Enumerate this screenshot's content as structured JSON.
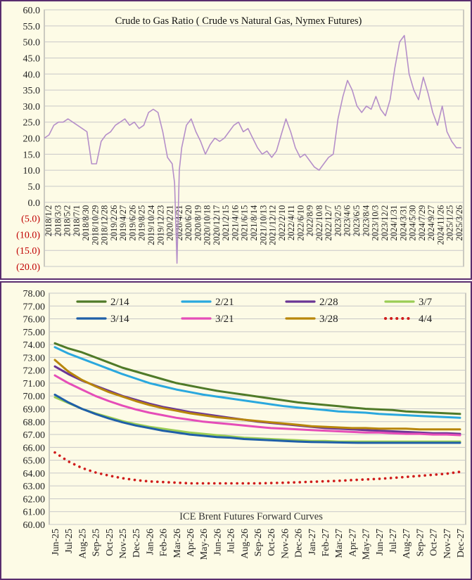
{
  "colors": {
    "frame": "#5a2d6e",
    "background": "#fdfbe6",
    "ratio_line": "#b58fc9",
    "negative_tick": "#c00000"
  },
  "chart_data": [
    {
      "type": "line",
      "title": "Crude to Gas Ratio ( Crude vs Natural Gas, Nymex Futures)",
      "xlabel": "",
      "ylabel": "",
      "ylim": [
        -20,
        60
      ],
      "y_ticks": [
        "60.0",
        "55.0",
        "50.0",
        "45.0",
        "40.0",
        "35.0",
        "30.0",
        "25.0",
        "20.0",
        "15.0",
        "10.0",
        "5.0",
        "0.0",
        "(5.0)",
        "(10.0)",
        "(15.0)",
        "(20.0)"
      ],
      "x_tick_labels": [
        "2018/1/2",
        "2018/3/3",
        "2018/5/2",
        "2018/7/1",
        "2018/8/30",
        "2018/10/29",
        "2018/12/28",
        "2019/2/26",
        "2019/4/27",
        "2019/6/26",
        "2019/8/25",
        "2019/10/24",
        "2019/12/23",
        "2020/2/21",
        "2020/4/21",
        "2020/6/20",
        "2020/8/19",
        "2020/10/18",
        "2020/12/17",
        "2021/2/15",
        "2021/4/16",
        "2021/6/15",
        "2021/8/14",
        "2021/10/13",
        "2021/12/12",
        "2022/2/10",
        "2022/4/11",
        "2022/6/10",
        "2022/8/9",
        "2022/10/8",
        "2022/12/7",
        "2023/2/5",
        "2023/4/6",
        "2023/6/5",
        "2023/8/4",
        "2023/10/3",
        "2023/12/2",
        "2024/1/31",
        "2024/3/31",
        "2024/5/30",
        "2024/7/29",
        "2024/9/27",
        "2024/11/26",
        "2025/1/25",
        "2025/3/26"
      ],
      "series": [
        {
          "color": "#b58fc9",
          "x": [
            "2018-01-02",
            "2018-02-01",
            "2018-03-03",
            "2018-04-02",
            "2018-05-02",
            "2018-06-01",
            "2018-07-01",
            "2018-07-31",
            "2018-08-30",
            "2018-09-29",
            "2018-10-29",
            "2018-11-28",
            "2018-12-28",
            "2019-01-27",
            "2019-02-26",
            "2019-03-28",
            "2019-04-27",
            "2019-05-27",
            "2019-06-26",
            "2019-07-26",
            "2019-08-25",
            "2019-09-24",
            "2019-10-24",
            "2019-11-23",
            "2019-12-23",
            "2020-01-22",
            "2020-02-21",
            "2020-03-22",
            "2020-04-06",
            "2020-04-21",
            "2020-05-06",
            "2020-05-21",
            "2020-06-20",
            "2020-07-20",
            "2020-08-19",
            "2020-09-18",
            "2020-10-18",
            "2020-11-17",
            "2020-12-17",
            "2021-01-16",
            "2021-02-15",
            "2021-03-17",
            "2021-04-16",
            "2021-05-16",
            "2021-06-15",
            "2021-07-15",
            "2021-08-14",
            "2021-09-13",
            "2021-10-13",
            "2021-11-12",
            "2021-12-12",
            "2022-01-11",
            "2022-02-10",
            "2022-03-12",
            "2022-04-11",
            "2022-05-11",
            "2022-06-10",
            "2022-07-10",
            "2022-08-09",
            "2022-09-08",
            "2022-10-08",
            "2022-11-07",
            "2022-12-07",
            "2023-01-06",
            "2023-02-05",
            "2023-03-08",
            "2023-04-06",
            "2023-05-06",
            "2023-06-05",
            "2023-07-05",
            "2023-08-04",
            "2023-09-03",
            "2023-10-03",
            "2023-11-02",
            "2023-12-02",
            "2024-01-01",
            "2024-01-31",
            "2024-03-01",
            "2024-03-31",
            "2024-04-30",
            "2024-05-30",
            "2024-06-29",
            "2024-07-29",
            "2024-08-28",
            "2024-09-27",
            "2024-10-27",
            "2024-11-26",
            "2024-12-26",
            "2025-01-25",
            "2025-02-24",
            "2025-03-26"
          ],
          "values": [
            20,
            21,
            24,
            25,
            25,
            26,
            25,
            24,
            23,
            22,
            12,
            12,
            19,
            21,
            22,
            24,
            25,
            26,
            24,
            25,
            23,
            24,
            28,
            29,
            28,
            22,
            14,
            12,
            6,
            -19,
            10,
            17,
            24,
            26,
            22,
            19,
            15,
            18,
            20,
            19,
            20,
            22,
            24,
            25,
            22,
            23,
            20,
            17,
            15,
            16,
            14,
            16,
            21,
            26,
            22,
            17,
            14,
            15,
            13,
            11,
            10,
            12,
            14,
            15,
            26,
            33,
            38,
            35,
            30,
            28,
            30,
            29,
            33,
            29,
            27,
            32,
            42,
            50,
            52,
            40,
            35,
            32,
            39,
            34,
            28,
            24,
            30,
            22,
            19,
            17,
            17
          ]
        }
      ]
    },
    {
      "type": "line",
      "title": "ICE Brent Futures Forward Curves",
      "xlabel": "",
      "ylabel": "",
      "ylim": [
        60,
        78
      ],
      "y_ticks": [
        "78.00",
        "77.00",
        "76.00",
        "75.00",
        "74.00",
        "73.00",
        "72.00",
        "71.00",
        "70.00",
        "69.00",
        "68.00",
        "67.00",
        "66.00",
        "65.00",
        "64.00",
        "63.00",
        "62.00",
        "61.00",
        "60.00"
      ],
      "legend_position": "top",
      "categories": [
        "Jun-25",
        "Jul-25",
        "Aug-25",
        "Sep-25",
        "Oct-25",
        "Nov-25",
        "Dec-25",
        "Jan-26",
        "Feb-26",
        "Mar-26",
        "Apr-26",
        "May-26",
        "Jun-26",
        "Jul-26",
        "Aug-26",
        "Sep-26",
        "Oct-26",
        "Nov-26",
        "Dec-26",
        "Jan-27",
        "Feb-27",
        "Mar-27",
        "Apr-27",
        "May-27",
        "Jun-27",
        "Jul-27",
        "Aug-27",
        "Sep-27",
        "Oct-27",
        "Nov-27",
        "Dec-27"
      ],
      "series": [
        {
          "name": "2/14",
          "color": "#4f7a28",
          "dash": false,
          "values": [
            74.1,
            73.7,
            73.4,
            73.0,
            72.6,
            72.2,
            71.9,
            71.6,
            71.3,
            71.0,
            70.8,
            70.6,
            70.4,
            70.25,
            70.1,
            69.95,
            69.8,
            69.65,
            69.5,
            69.4,
            69.3,
            69.2,
            69.1,
            69.0,
            68.95,
            68.9,
            68.8,
            68.75,
            68.7,
            68.65,
            68.6
          ]
        },
        {
          "name": "2/21",
          "color": "#2aa8de",
          "dash": false,
          "values": [
            73.8,
            73.3,
            72.9,
            72.5,
            72.1,
            71.7,
            71.35,
            71.0,
            70.75,
            70.5,
            70.3,
            70.1,
            69.95,
            69.8,
            69.65,
            69.5,
            69.35,
            69.2,
            69.1,
            69.0,
            68.9,
            68.8,
            68.75,
            68.7,
            68.6,
            68.55,
            68.5,
            68.45,
            68.4,
            68.35,
            68.3
          ]
        },
        {
          "name": "2/28",
          "color": "#6a3595",
          "dash": false,
          "values": [
            72.3,
            71.7,
            71.2,
            70.8,
            70.4,
            70.0,
            69.7,
            69.4,
            69.15,
            68.95,
            68.75,
            68.6,
            68.45,
            68.3,
            68.15,
            68.0,
            67.9,
            67.8,
            67.7,
            67.6,
            67.5,
            67.45,
            67.4,
            67.35,
            67.3,
            67.25,
            67.2,
            67.15,
            67.1,
            67.1,
            67.05
          ]
        },
        {
          "name": "3/7",
          "color": "#9acd55",
          "dash": false,
          "values": [
            69.9,
            69.45,
            69.0,
            68.65,
            68.35,
            68.05,
            67.8,
            67.6,
            67.45,
            67.3,
            67.15,
            67.05,
            66.95,
            66.85,
            66.75,
            66.7,
            66.65,
            66.6,
            66.55,
            66.5,
            66.5,
            66.45,
            66.45,
            66.45,
            66.45,
            66.45,
            66.45,
            66.45,
            66.45,
            66.45,
            66.45
          ]
        },
        {
          "name": "3/14",
          "color": "#1f5fa8",
          "dash": false,
          "values": [
            70.1,
            69.5,
            69.0,
            68.6,
            68.25,
            67.95,
            67.7,
            67.5,
            67.3,
            67.15,
            67.0,
            66.9,
            66.8,
            66.75,
            66.65,
            66.6,
            66.55,
            66.5,
            66.45,
            66.42,
            66.4,
            66.38,
            66.36,
            66.35,
            66.35,
            66.35,
            66.35,
            66.35,
            66.35,
            66.35,
            66.35
          ]
        },
        {
          "name": "3/21",
          "color": "#e54db8",
          "dash": false,
          "values": [
            71.6,
            71.0,
            70.5,
            70.0,
            69.6,
            69.25,
            68.95,
            68.7,
            68.5,
            68.3,
            68.15,
            68.0,
            67.9,
            67.8,
            67.7,
            67.6,
            67.5,
            67.45,
            67.4,
            67.35,
            67.3,
            67.25,
            67.2,
            67.15,
            67.15,
            67.1,
            67.05,
            67.05,
            67.0,
            67.0,
            66.95
          ]
        },
        {
          "name": "3/28",
          "color": "#b8860b",
          "dash": false,
          "values": [
            72.8,
            71.9,
            71.25,
            70.75,
            70.3,
            69.95,
            69.6,
            69.3,
            69.05,
            68.85,
            68.65,
            68.5,
            68.35,
            68.25,
            68.15,
            68.05,
            67.95,
            67.85,
            67.75,
            67.65,
            67.6,
            67.55,
            67.5,
            67.5,
            67.45,
            67.45,
            67.45,
            67.4,
            67.4,
            67.4,
            67.4
          ]
        },
        {
          "name": "4/4",
          "color": "#d01c1c",
          "dash": true,
          "values": [
            65.6,
            64.9,
            64.4,
            64.05,
            63.8,
            63.6,
            63.45,
            63.35,
            63.3,
            63.25,
            63.2,
            63.2,
            63.2,
            63.2,
            63.2,
            63.2,
            63.22,
            63.25,
            63.28,
            63.32,
            63.36,
            63.4,
            63.45,
            63.5,
            63.55,
            63.62,
            63.7,
            63.78,
            63.86,
            63.95,
            64.1
          ]
        }
      ]
    }
  ]
}
